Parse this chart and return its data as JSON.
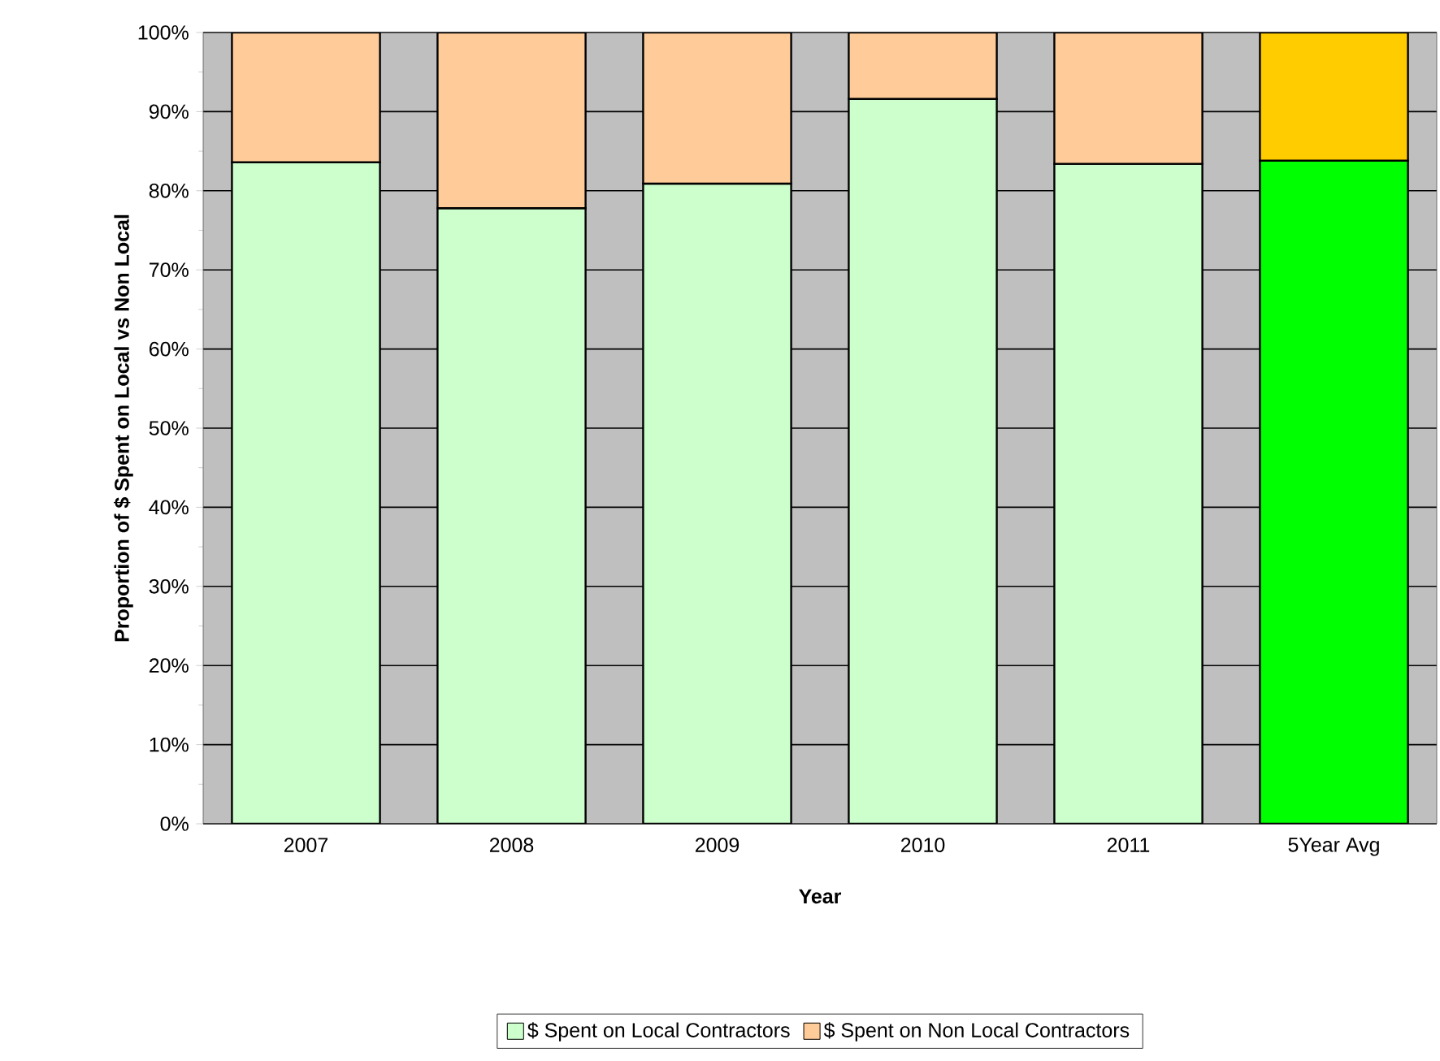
{
  "chart_data": {
    "type": "bar",
    "stacked": true,
    "xlabel": "Year",
    "ylabel": "Proportion of $ Spent on Local vs Non Local",
    "categories": [
      "2007",
      "2008",
      "2009",
      "2010",
      "2011",
      "5Year Avg"
    ],
    "series": [
      {
        "name": "$ Spent on Local Contractors",
        "color": "#ccffcc",
        "colors": [
          "#ccffcc",
          "#ccffcc",
          "#ccffcc",
          "#ccffcc",
          "#ccffcc",
          "#00ff00"
        ],
        "values": [
          83.6,
          77.8,
          80.9,
          91.6,
          83.4,
          83.8
        ]
      },
      {
        "name": "$ Spent on Non Local Contractors",
        "color": "#ffcc99",
        "colors": [
          "#ffcc99",
          "#ffcc99",
          "#ffcc99",
          "#ffcc99",
          "#ffcc99",
          "#ffcc00"
        ],
        "values": [
          16.4,
          22.2,
          19.1,
          8.4,
          16.6,
          16.2
        ]
      }
    ],
    "ylim": [
      0,
      100
    ],
    "yticks": [
      {
        "value": 0,
        "label": "0%"
      },
      {
        "value": 10,
        "label": "10%"
      },
      {
        "value": 20,
        "label": "20%"
      },
      {
        "value": 30,
        "label": "30%"
      },
      {
        "value": 40,
        "label": "40%"
      },
      {
        "value": 50,
        "label": "50%"
      },
      {
        "value": 60,
        "label": "60%"
      },
      {
        "value": 70,
        "label": "70%"
      },
      {
        "value": 80,
        "label": "80%"
      },
      {
        "value": 90,
        "label": "90%"
      },
      {
        "value": 100,
        "label": "100%"
      }
    ],
    "grid": "y",
    "legend": "bottom"
  }
}
